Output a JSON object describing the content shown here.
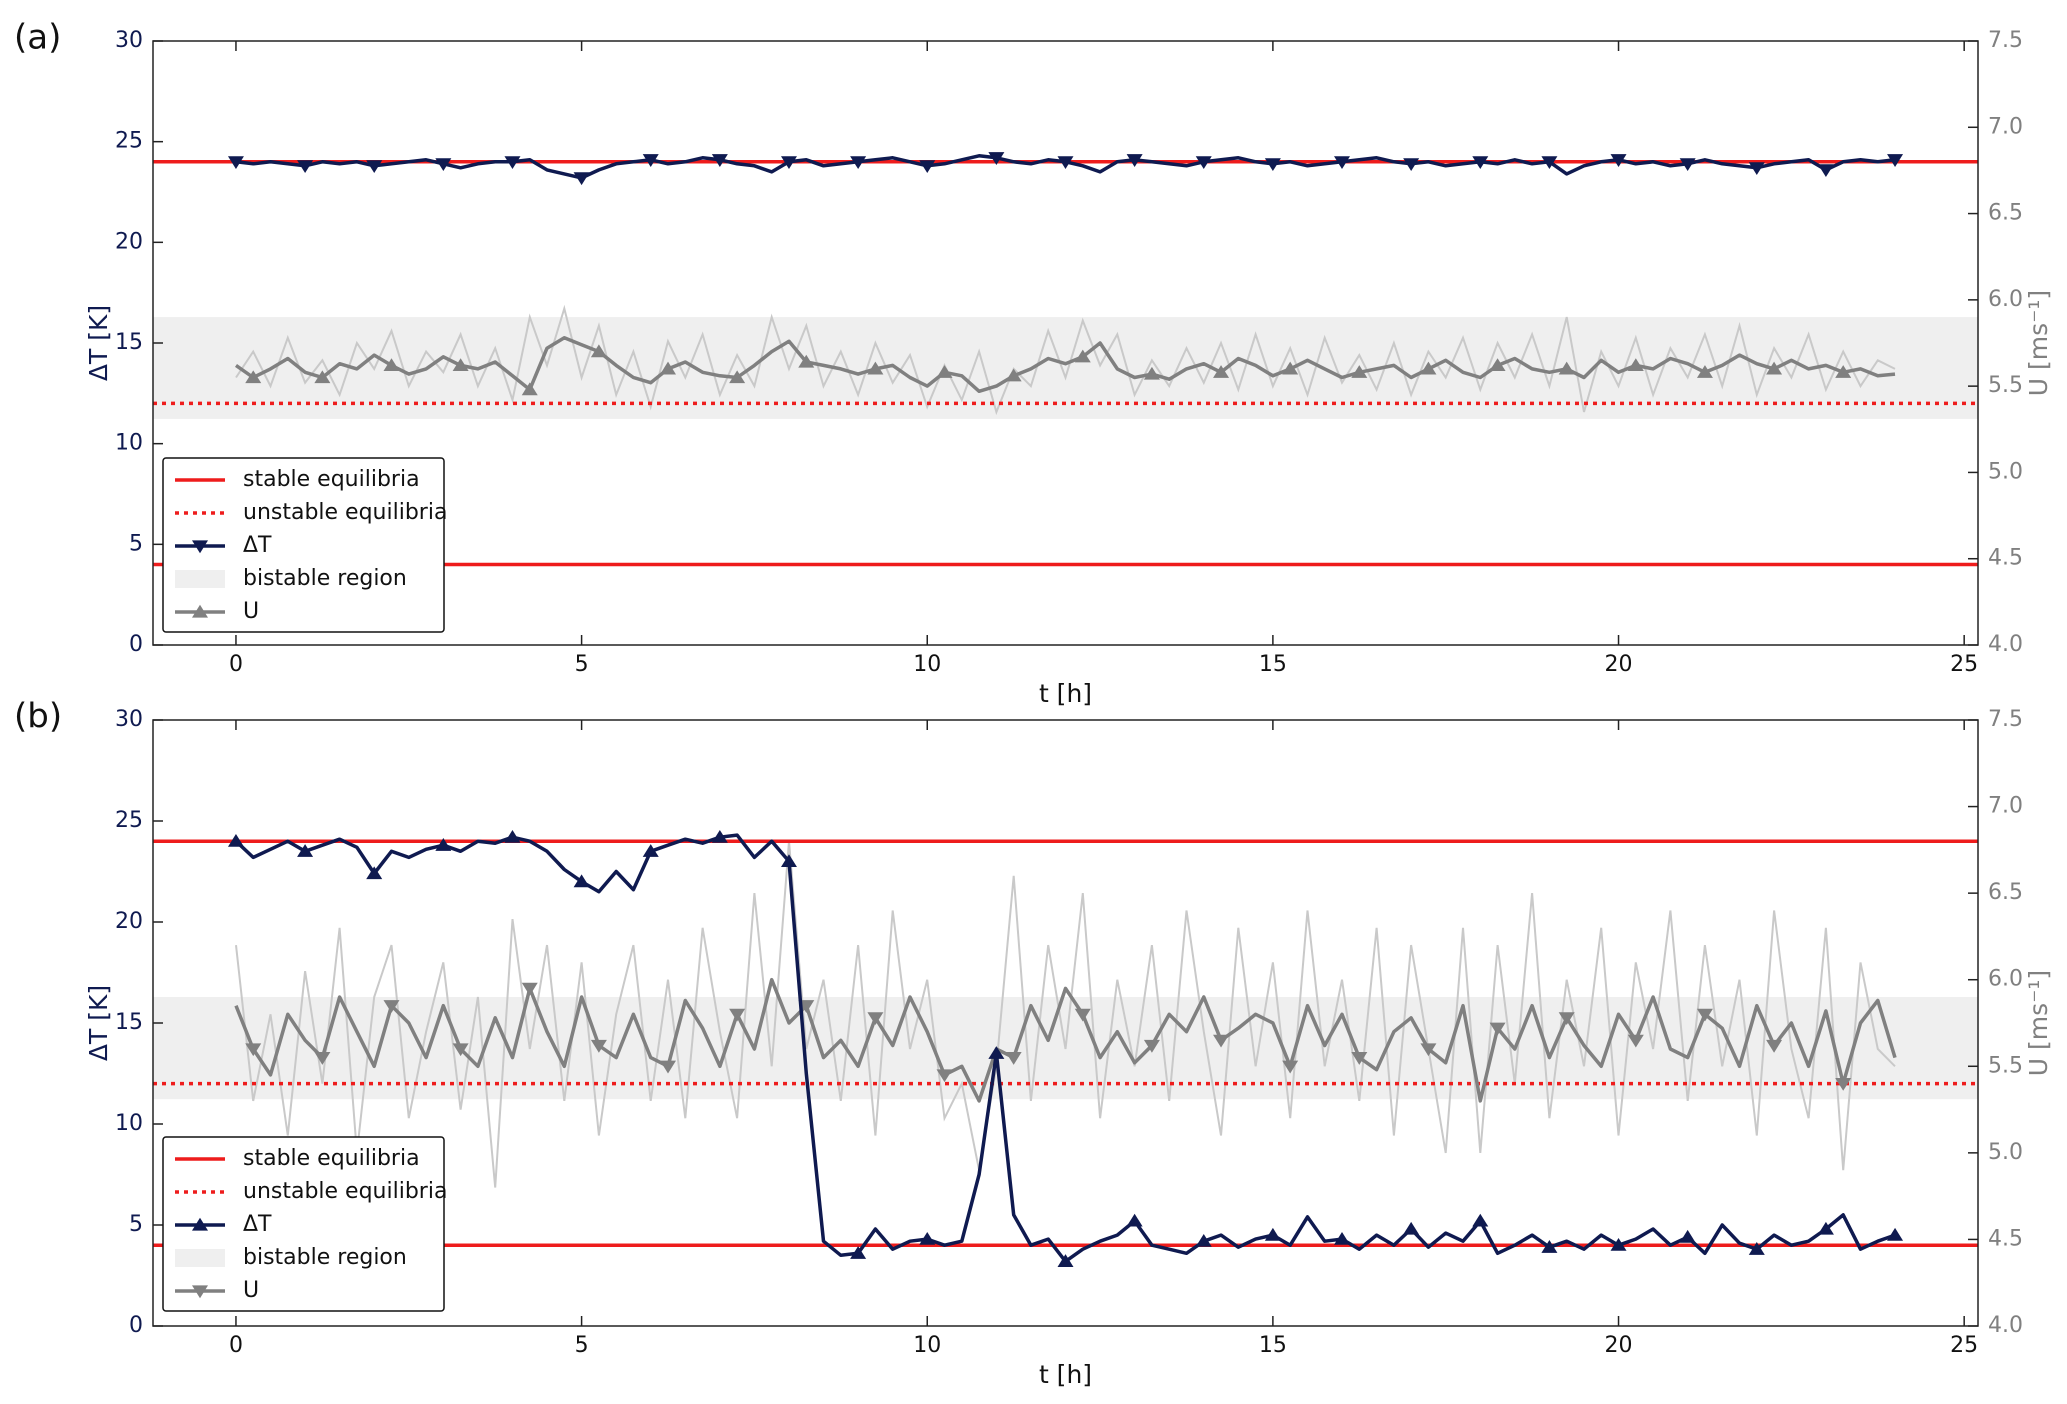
{
  "chart_data": [
    {
      "type": "line",
      "label": "(a)",
      "xlabel": "t [h]",
      "ylabel": "ΔT [K]",
      "y2label": "U [ms⁻¹]",
      "xlim": [
        -1.2,
        25.2
      ],
      "xticks": [
        0,
        5,
        10,
        15,
        20,
        25
      ],
      "ylim": [
        0,
        30
      ],
      "yticks": [
        0,
        5,
        10,
        15,
        20,
        25,
        30
      ],
      "y2lim": [
        4.0,
        7.5
      ],
      "y2ticks": [
        {
          "value": 4.0,
          "label": "4.0"
        },
        {
          "value": 4.5,
          "label": "4.5"
        },
        {
          "value": 5.0,
          "label": "5.0"
        },
        {
          "value": 5.5,
          "label": "5.5"
        },
        {
          "value": 6.0,
          "label": "6.0"
        },
        {
          "value": 6.5,
          "label": "6.5"
        },
        {
          "value": 7.0,
          "label": "7.0"
        },
        {
          "value": 7.5,
          "label": "7.5"
        }
      ],
      "stable_equilibria": {
        "name": "stable equilibria",
        "color": "#ee1c1c",
        "values": [
          24,
          4
        ]
      },
      "unstable_equilibria": {
        "name": "unstable equilibria",
        "color": "#ee1c1c",
        "values": [
          12
        ]
      },
      "bistable_region": {
        "name": "bistable region",
        "color": "#efefef",
        "axis": "y2",
        "values": [
          5.31,
          5.9
        ]
      },
      "x": [
        0,
        0.25,
        0.5,
        0.75,
        1,
        1.25,
        1.5,
        1.75,
        2,
        2.25,
        2.5,
        2.75,
        3,
        3.25,
        3.5,
        3.75,
        4,
        4.25,
        4.5,
        4.75,
        5,
        5.25,
        5.5,
        5.75,
        6,
        6.25,
        6.5,
        6.75,
        7,
        7.25,
        7.5,
        7.75,
        8,
        8.25,
        8.5,
        8.75,
        9,
        9.25,
        9.5,
        9.75,
        10,
        10.25,
        10.5,
        10.75,
        11,
        11.25,
        11.5,
        11.75,
        12,
        12.25,
        12.5,
        12.75,
        13,
        13.25,
        13.5,
        13.75,
        14,
        14.25,
        14.5,
        14.75,
        15,
        15.25,
        15.5,
        15.75,
        16,
        16.25,
        16.5,
        16.75,
        17,
        17.25,
        17.5,
        17.75,
        18,
        18.25,
        18.5,
        18.75,
        19,
        19.25,
        19.5,
        19.75,
        20,
        20.25,
        20.5,
        20.75,
        21,
        21.25,
        21.5,
        21.75,
        22,
        22.25,
        22.5,
        22.75,
        23,
        23.25,
        23.5,
        23.75,
        24
      ],
      "u_raw": {
        "color": "#c9c9c9",
        "axis": "y2",
        "values": [
          5.55,
          5.7,
          5.5,
          5.78,
          5.52,
          5.65,
          5.45,
          5.75,
          5.6,
          5.82,
          5.5,
          5.7,
          5.58,
          5.8,
          5.5,
          5.72,
          5.42,
          5.9,
          5.62,
          5.95,
          5.55,
          5.85,
          5.45,
          5.7,
          5.38,
          5.76,
          5.55,
          5.8,
          5.45,
          5.68,
          5.5,
          5.9,
          5.6,
          5.85,
          5.5,
          5.7,
          5.45,
          5.75,
          5.52,
          5.68,
          5.38,
          5.62,
          5.42,
          5.7,
          5.35,
          5.6,
          5.5,
          5.82,
          5.55,
          5.88,
          5.62,
          5.8,
          5.45,
          5.65,
          5.5,
          5.72,
          5.52,
          5.75,
          5.48,
          5.8,
          5.5,
          5.72,
          5.45,
          5.78,
          5.52,
          5.68,
          5.48,
          5.75,
          5.45,
          5.7,
          5.55,
          5.78,
          5.48,
          5.75,
          5.55,
          5.8,
          5.5,
          5.9,
          5.35,
          5.7,
          5.5,
          5.78,
          5.45,
          5.72,
          5.55,
          5.8,
          5.5,
          5.85,
          5.45,
          5.72,
          5.55,
          5.8,
          5.48,
          5.7,
          5.5,
          5.65,
          5.6
        ]
      },
      "series": [
        {
          "name": "ΔT",
          "color": "#0f1a50",
          "marker": "down",
          "values": [
            24.0,
            23.9,
            24.0,
            23.9,
            23.8,
            24.0,
            23.9,
            24.0,
            23.8,
            23.9,
            24.0,
            24.1,
            23.9,
            23.7,
            23.9,
            24.0,
            24.0,
            24.1,
            23.6,
            23.4,
            23.2,
            23.6,
            23.9,
            24.0,
            24.1,
            23.9,
            24.0,
            24.2,
            24.1,
            23.9,
            23.8,
            23.5,
            24.0,
            24.1,
            23.8,
            23.9,
            24.0,
            24.1,
            24.2,
            24.0,
            23.8,
            23.9,
            24.1,
            24.3,
            24.2,
            24.0,
            23.9,
            24.1,
            24.0,
            23.8,
            23.5,
            24.0,
            24.1,
            24.0,
            23.9,
            23.8,
            24.0,
            24.1,
            24.2,
            24.0,
            23.9,
            24.0,
            23.8,
            23.9,
            24.0,
            24.1,
            24.2,
            24.0,
            23.9,
            24.0,
            23.8,
            23.9,
            24.0,
            23.9,
            24.1,
            23.9,
            24.0,
            23.4,
            23.8,
            24.0,
            24.1,
            23.9,
            24.0,
            23.8,
            23.9,
            24.1,
            23.9,
            23.8,
            23.7,
            23.9,
            24.0,
            24.1,
            23.6,
            24.0,
            24.1,
            24.0,
            24.1
          ]
        },
        {
          "name": "U",
          "color": "#808080",
          "axis": "y2",
          "marker": "up",
          "values": [
            5.62,
            5.55,
            5.6,
            5.66,
            5.58,
            5.55,
            5.63,
            5.6,
            5.68,
            5.62,
            5.57,
            5.6,
            5.67,
            5.62,
            5.6,
            5.64,
            5.56,
            5.48,
            5.72,
            5.78,
            5.74,
            5.7,
            5.62,
            5.55,
            5.52,
            5.6,
            5.64,
            5.58,
            5.56,
            5.55,
            5.62,
            5.7,
            5.76,
            5.64,
            5.62,
            5.6,
            5.57,
            5.6,
            5.62,
            5.55,
            5.5,
            5.58,
            5.56,
            5.47,
            5.5,
            5.56,
            5.6,
            5.66,
            5.63,
            5.67,
            5.75,
            5.6,
            5.55,
            5.57,
            5.54,
            5.6,
            5.63,
            5.58,
            5.66,
            5.62,
            5.56,
            5.6,
            5.65,
            5.6,
            5.55,
            5.58,
            5.6,
            5.62,
            5.55,
            5.6,
            5.65,
            5.58,
            5.55,
            5.62,
            5.66,
            5.6,
            5.58,
            5.6,
            5.55,
            5.65,
            5.58,
            5.62,
            5.6,
            5.66,
            5.63,
            5.58,
            5.62,
            5.68,
            5.63,
            5.6,
            5.65,
            5.6,
            5.62,
            5.58,
            5.6,
            5.56,
            5.57
          ]
        }
      ]
    },
    {
      "type": "line",
      "label": "(b)",
      "xlabel": "t [h]",
      "ylabel": "ΔT [K]",
      "y2label": "U [ms⁻¹]",
      "xlim": [
        -1.2,
        25.2
      ],
      "xticks": [
        0,
        5,
        10,
        15,
        20,
        25
      ],
      "ylim": [
        0,
        30
      ],
      "yticks": [
        0,
        5,
        10,
        15,
        20,
        25,
        30
      ],
      "y2lim": [
        4.0,
        7.5
      ],
      "y2ticks": [
        {
          "value": 4.0,
          "label": "4.0"
        },
        {
          "value": 4.5,
          "label": "4.5"
        },
        {
          "value": 5.0,
          "label": "5.0"
        },
        {
          "value": 5.5,
          "label": "5.5"
        },
        {
          "value": 6.0,
          "label": "6.0"
        },
        {
          "value": 6.5,
          "label": "6.5"
        },
        {
          "value": 7.0,
          "label": "7.0"
        },
        {
          "value": 7.5,
          "label": "7.5"
        }
      ],
      "stable_equilibria": {
        "name": "stable equilibria",
        "color": "#ee1c1c",
        "values": [
          24,
          4
        ]
      },
      "unstable_equilibria": {
        "name": "unstable equilibria",
        "color": "#ee1c1c",
        "values": [
          12
        ]
      },
      "bistable_region": {
        "name": "bistable region",
        "color": "#efefef",
        "axis": "y2",
        "values": [
          5.31,
          5.9
        ]
      },
      "x": [
        0,
        0.25,
        0.5,
        0.75,
        1,
        1.25,
        1.5,
        1.75,
        2,
        2.25,
        2.5,
        2.75,
        3,
        3.25,
        3.5,
        3.75,
        4,
        4.25,
        4.5,
        4.75,
        5,
        5.25,
        5.5,
        5.75,
        6,
        6.25,
        6.5,
        6.75,
        7,
        7.25,
        7.5,
        7.75,
        8,
        8.25,
        8.5,
        8.75,
        9,
        9.25,
        9.5,
        9.75,
        10,
        10.25,
        10.5,
        10.75,
        11,
        11.25,
        11.5,
        11.75,
        12,
        12.25,
        12.5,
        12.75,
        13,
        13.25,
        13.5,
        13.75,
        14,
        14.25,
        14.5,
        14.75,
        15,
        15.25,
        15.5,
        15.75,
        16,
        16.25,
        16.5,
        16.75,
        17,
        17.25,
        17.5,
        17.75,
        18,
        18.25,
        18.5,
        18.75,
        19,
        19.25,
        19.5,
        19.75,
        20,
        20.25,
        20.5,
        20.75,
        21,
        21.25,
        21.5,
        21.75,
        22,
        22.25,
        22.5,
        22.75,
        23,
        23.25,
        23.5,
        23.75,
        24
      ],
      "u_raw": {
        "color": "#c9c9c9",
        "axis": "y2",
        "values": [
          6.2,
          5.3,
          5.8,
          5.1,
          6.05,
          5.4,
          6.3,
          5.0,
          5.9,
          6.2,
          5.2,
          5.7,
          6.1,
          5.25,
          5.9,
          4.8,
          6.35,
          5.6,
          6.2,
          5.3,
          6.1,
          5.1,
          5.8,
          6.2,
          5.3,
          6.0,
          5.2,
          6.3,
          5.7,
          5.2,
          6.5,
          5.5,
          6.8,
          5.6,
          6.0,
          5.3,
          6.2,
          5.1,
          6.4,
          5.6,
          6.0,
          5.2,
          5.4,
          4.9,
          5.5,
          6.6,
          5.3,
          6.2,
          5.6,
          6.5,
          5.2,
          6.0,
          5.5,
          6.2,
          5.3,
          6.4,
          5.7,
          5.1,
          6.3,
          5.5,
          6.1,
          5.2,
          6.4,
          5.5,
          6.0,
          5.3,
          6.3,
          5.1,
          6.2,
          5.6,
          5.0,
          6.3,
          5.0,
          6.2,
          5.4,
          6.5,
          5.2,
          6.0,
          5.5,
          6.3,
          5.1,
          6.1,
          5.6,
          6.4,
          5.3,
          6.2,
          5.5,
          6.0,
          5.1,
          6.4,
          5.6,
          5.2,
          6.3,
          4.9,
          6.1,
          5.6,
          5.5
        ]
      },
      "series": [
        {
          "name": "ΔT",
          "color": "#0f1a50",
          "marker": "up",
          "values": [
            24.0,
            23.2,
            23.6,
            24.0,
            23.5,
            23.8,
            24.1,
            23.7,
            22.4,
            23.5,
            23.2,
            23.6,
            23.8,
            23.5,
            24.0,
            23.9,
            24.2,
            24.0,
            23.5,
            22.6,
            22.0,
            21.5,
            22.5,
            21.6,
            23.5,
            23.8,
            24.1,
            23.9,
            24.2,
            24.3,
            23.2,
            24.0,
            23.0,
            12.5,
            4.2,
            3.5,
            3.6,
            4.8,
            3.8,
            4.2,
            4.3,
            4.0,
            4.2,
            7.5,
            13.5,
            5.5,
            4.0,
            4.3,
            3.2,
            3.8,
            4.2,
            4.5,
            5.2,
            4.0,
            3.8,
            3.6,
            4.2,
            4.5,
            3.9,
            4.3,
            4.5,
            4.0,
            5.4,
            4.2,
            4.3,
            3.8,
            4.5,
            4.0,
            4.8,
            3.9,
            4.6,
            4.2,
            5.2,
            3.6,
            4.0,
            4.5,
            3.9,
            4.2,
            3.8,
            4.5,
            4.0,
            4.3,
            4.8,
            4.0,
            4.4,
            3.6,
            5.0,
            4.1,
            3.8,
            4.5,
            4.0,
            4.2,
            4.8,
            5.5,
            3.8,
            4.2,
            4.5
          ]
        },
        {
          "name": "U",
          "color": "#808080",
          "axis": "y2",
          "marker": "down",
          "values": [
            5.85,
            5.6,
            5.45,
            5.8,
            5.65,
            5.55,
            5.9,
            5.7,
            5.5,
            5.85,
            5.75,
            5.55,
            5.85,
            5.6,
            5.5,
            5.78,
            5.55,
            5.95,
            5.7,
            5.5,
            5.9,
            5.62,
            5.55,
            5.8,
            5.55,
            5.5,
            5.88,
            5.72,
            5.5,
            5.8,
            5.6,
            6.0,
            5.75,
            5.85,
            5.55,
            5.65,
            5.5,
            5.78,
            5.62,
            5.9,
            5.7,
            5.45,
            5.5,
            5.3,
            5.6,
            5.55,
            5.85,
            5.65,
            5.95,
            5.8,
            5.55,
            5.7,
            5.52,
            5.62,
            5.8,
            5.7,
            5.9,
            5.65,
            5.72,
            5.8,
            5.75,
            5.5,
            5.85,
            5.62,
            5.8,
            5.55,
            5.48,
            5.7,
            5.78,
            5.6,
            5.52,
            5.85,
            5.3,
            5.72,
            5.6,
            5.85,
            5.55,
            5.78,
            5.62,
            5.5,
            5.8,
            5.65,
            5.9,
            5.6,
            5.55,
            5.8,
            5.72,
            5.5,
            5.85,
            5.62,
            5.75,
            5.5,
            5.82,
            5.4,
            5.75,
            5.88,
            5.55
          ]
        }
      ]
    }
  ]
}
